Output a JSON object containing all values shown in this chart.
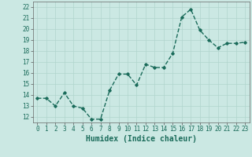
{
  "x": [
    0,
    1,
    2,
    3,
    4,
    5,
    6,
    7,
    8,
    9,
    10,
    11,
    12,
    13,
    14,
    15,
    16,
    17,
    18,
    19,
    20,
    21,
    22,
    23
  ],
  "y": [
    13.7,
    13.7,
    13.0,
    14.2,
    13.0,
    12.8,
    11.8,
    11.8,
    14.4,
    15.9,
    15.9,
    14.9,
    16.8,
    16.5,
    16.5,
    17.8,
    21.1,
    21.8,
    19.9,
    19.0,
    18.3,
    18.7,
    18.7,
    18.8
  ],
  "line_color": "#1a6b5a",
  "marker": "D",
  "marker_size": 1.8,
  "line_width": 1.0,
  "background_color": "#cbe8e3",
  "grid_color": "#b0d4cd",
  "xlabel": "Humidex (Indice chaleur)",
  "xlim": [
    -0.5,
    23.5
  ],
  "ylim": [
    11.5,
    22.5
  ],
  "yticks": [
    12,
    13,
    14,
    15,
    16,
    17,
    18,
    19,
    20,
    21,
    22
  ],
  "xticks": [
    0,
    1,
    2,
    3,
    4,
    5,
    6,
    7,
    8,
    9,
    10,
    11,
    12,
    13,
    14,
    15,
    16,
    17,
    18,
    19,
    20,
    21,
    22,
    23
  ],
  "tick_fontsize": 5.5,
  "xlabel_fontsize": 7.0,
  "xlabel_fontweight": "bold"
}
